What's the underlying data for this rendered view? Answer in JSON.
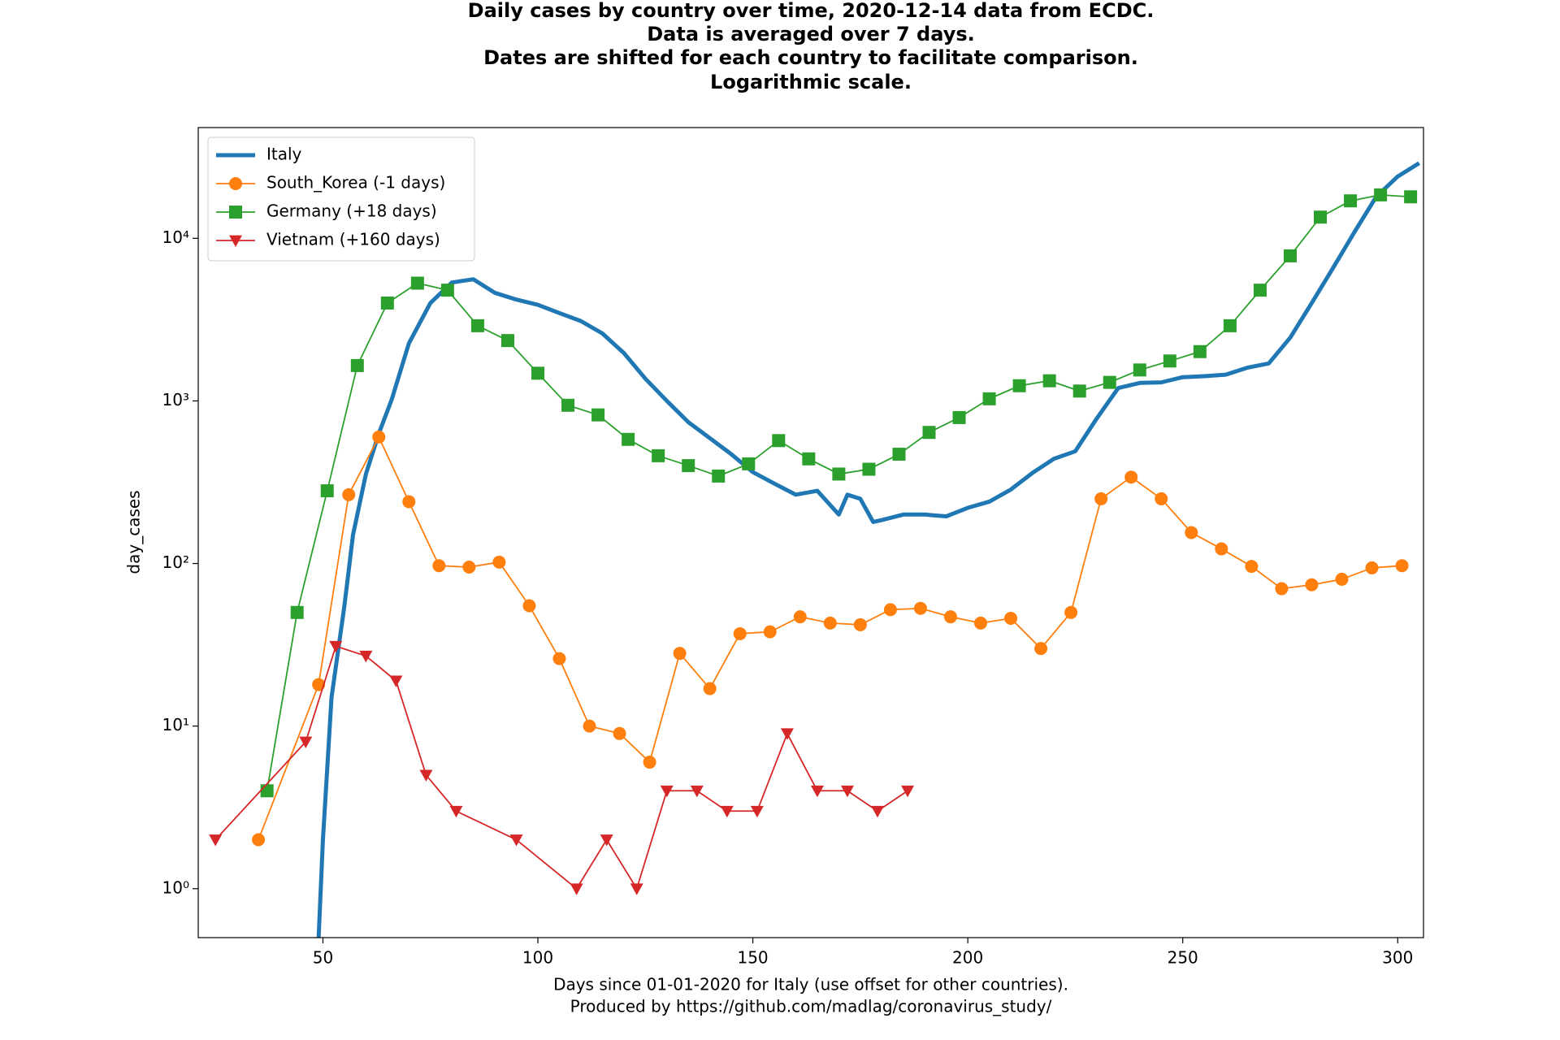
{
  "chart_data": {
    "type": "line",
    "title": [
      "Daily cases by country over time, 2020-12-14 data from ECDC.",
      "Data is averaged over 7 days.",
      "Dates are shifted for each country to facilitate comparison.",
      "Logarithmic scale."
    ],
    "xlabel": [
      "Days since 01-01-2020 for Italy (use offset for other countries).",
      "Produced by https://github.com/madlag/coronavirus_study/"
    ],
    "ylabel": "day_cases",
    "xlim": [
      21,
      306
    ],
    "ylim": [
      0.5,
      48000
    ],
    "yscale": "log",
    "legend": "upper left",
    "xticks": [
      50,
      100,
      150,
      200,
      250,
      300
    ],
    "yticks": [
      {
        "value": 1,
        "label": "10⁰"
      },
      {
        "value": 10,
        "label": "10¹"
      },
      {
        "value": 100,
        "label": "10²"
      },
      {
        "value": 1000,
        "label": "10³"
      },
      {
        "value": 10000,
        "label": "10⁴"
      }
    ],
    "series": [
      {
        "name": "Italy",
        "color": "#1f77b4",
        "marker": "none",
        "x": [
          49,
          50,
          52,
          55,
          57,
          60,
          63,
          66,
          70,
          75,
          80,
          85,
          90,
          95,
          100,
          105,
          110,
          115,
          120,
          125,
          130,
          135,
          140,
          145,
          150,
          155,
          160,
          165,
          170,
          172,
          175,
          178,
          180,
          185,
          190,
          195,
          200,
          205,
          210,
          215,
          220,
          225,
          230,
          235,
          240,
          245,
          250,
          255,
          260,
          265,
          270,
          275,
          280,
          285,
          290,
          295,
          300,
          305
        ],
        "values": [
          0.5,
          2,
          15,
          55,
          150,
          355,
          630,
          1020,
          2260,
          4000,
          5350,
          5600,
          4620,
          4200,
          3900,
          3470,
          3100,
          2600,
          1970,
          1370,
          1000,
          740,
          590,
          470,
          365,
          310,
          265,
          280,
          200,
          265,
          250,
          180,
          185,
          200,
          200,
          195,
          220,
          240,
          285,
          360,
          440,
          490,
          780,
          1200,
          1290,
          1300,
          1400,
          1420,
          1450,
          1600,
          1700,
          2450,
          4000,
          6600,
          11000,
          18000,
          24000,
          29000
        ]
      },
      {
        "name": "South_Korea (-1 days)",
        "color": "#ff7f0e",
        "marker": "circle",
        "x": [
          35,
          49,
          56,
          63,
          70,
          77,
          84,
          91,
          98,
          105,
          112,
          119,
          126,
          133,
          140,
          147,
          154,
          161,
          168,
          175,
          182,
          189,
          196,
          203,
          210,
          217,
          224,
          231,
          238,
          245,
          252,
          259,
          266,
          273,
          280,
          287,
          294,
          301
        ],
        "values": [
          2,
          18,
          265,
          600,
          240,
          97,
          95,
          102,
          55,
          26,
          10,
          9,
          6,
          28,
          17,
          37,
          38,
          47,
          43,
          42,
          52,
          53,
          47,
          43,
          46,
          30,
          50,
          250,
          340,
          250,
          155,
          123,
          96,
          70,
          74,
          80,
          94,
          97
        ]
      },
      {
        "name": "Germany (+18 days)",
        "color": "#2ca02c",
        "marker": "square",
        "x": [
          37,
          44,
          51,
          58,
          65,
          72,
          79,
          86,
          93,
          100,
          107,
          114,
          121,
          128,
          135,
          142,
          149,
          156,
          163,
          170,
          177,
          184,
          191,
          198,
          205,
          212,
          219,
          226,
          233,
          240,
          247,
          254,
          261,
          268,
          275,
          282,
          289,
          296,
          303
        ],
        "values": [
          4,
          50,
          280,
          1650,
          4000,
          5300,
          4800,
          2900,
          2350,
          1480,
          940,
          820,
          580,
          460,
          400,
          345,
          410,
          570,
          440,
          355,
          380,
          470,
          640,
          790,
          1030,
          1240,
          1330,
          1150,
          1300,
          1550,
          1760,
          2010,
          2900,
          4800,
          7800,
          13500,
          17000,
          18500,
          18000
        ]
      },
      {
        "name": "Vietnam (+160 days)",
        "color": "#d62728",
        "marker": "triangle-down",
        "x": [
          25,
          46,
          53,
          60,
          67,
          74,
          81,
          95,
          109,
          116,
          123,
          130,
          137,
          144,
          151,
          158,
          165,
          172,
          179,
          186
        ],
        "values": [
          2,
          8,
          31,
          27,
          19,
          5,
          3,
          2,
          1,
          2,
          1,
          4,
          4,
          3,
          3,
          9,
          4,
          4,
          3,
          4
        ]
      }
    ]
  }
}
